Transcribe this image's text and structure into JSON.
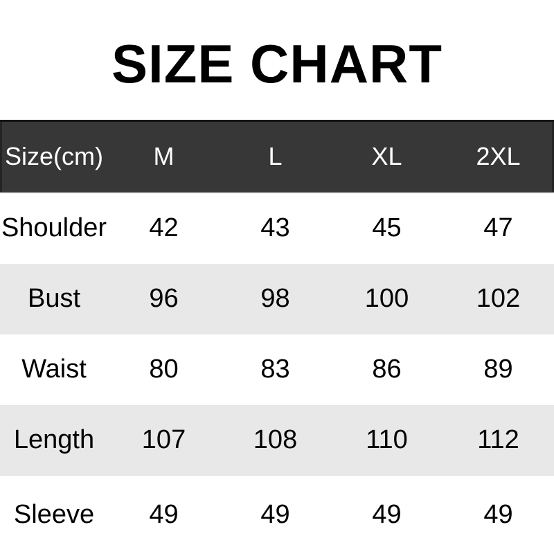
{
  "title": "SIZE CHART",
  "chart_data": {
    "type": "table",
    "title": "SIZE CHART",
    "unit_note": "Size(cm)",
    "columns": [
      "Size(cm)",
      "M",
      "L",
      "XL",
      "2XL"
    ],
    "rows": [
      [
        "Shoulder",
        42,
        43,
        45,
        47
      ],
      [
        "Bust",
        96,
        98,
        100,
        102
      ],
      [
        "Waist",
        80,
        83,
        86,
        89
      ],
      [
        "Length",
        107,
        108,
        110,
        112
      ],
      [
        "Sleeve",
        49,
        49,
        49,
        49
      ]
    ]
  },
  "colors": {
    "header_bg": "#373737",
    "header_text": "#ffffff",
    "alt_row_bg": "#e9e8e8",
    "row_bg": "#ffffff",
    "title_text": "#000000",
    "body_text": "#000000",
    "header_top_border": "#151515",
    "header_bottom_border": "#8f8f8f"
  }
}
